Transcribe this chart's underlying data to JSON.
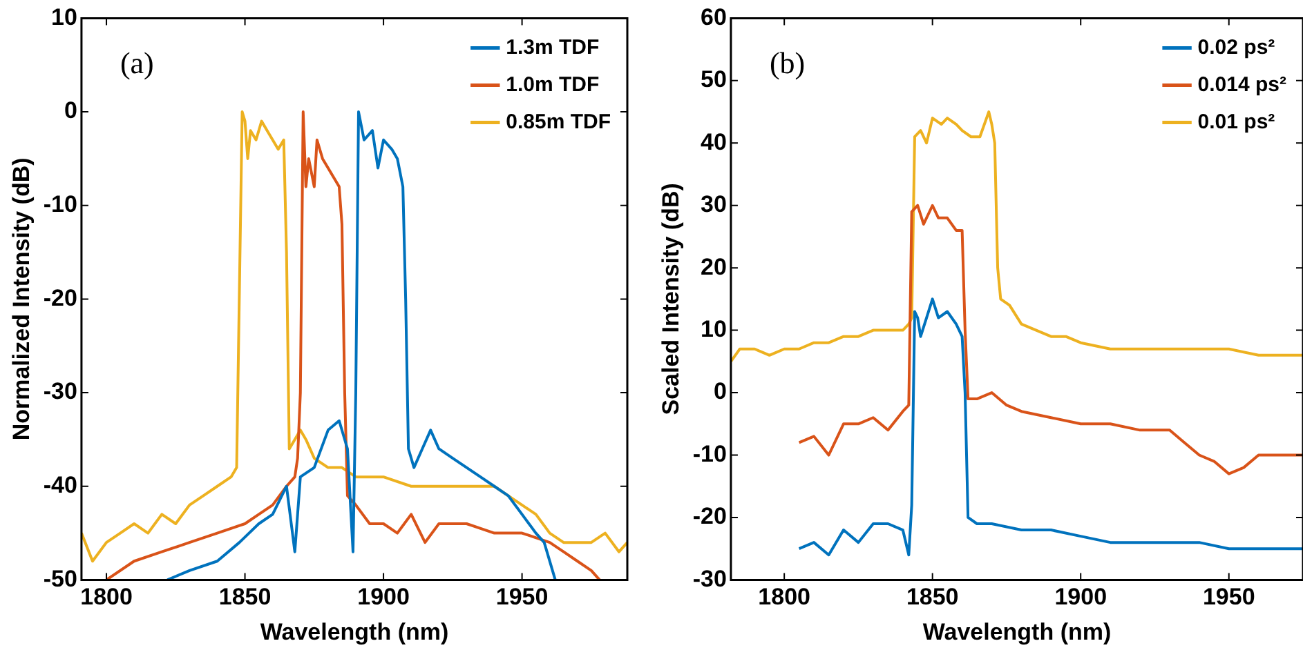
{
  "chart_data": [
    {
      "type": "line",
      "xlabel": "Wavelength (nm)",
      "ylabel": "Normalized Intensity (dB)",
      "annotations": [
        "(a)"
      ],
      "xlim": [
        1791,
        1988
      ],
      "xticks": [
        1800,
        1850,
        1900,
        1950
      ],
      "ylim": [
        -50,
        10
      ],
      "yticks": [
        -50,
        -40,
        -30,
        -20,
        -10,
        0,
        10
      ],
      "legend": "top right",
      "marker": "none",
      "line_style": "solid",
      "grid": false,
      "series": [
        {
          "name": "1.3m TDF",
          "color": "#0072bd",
          "x": [
            1822,
            1830,
            1840,
            1848,
            1855,
            1860,
            1865,
            1868,
            1870,
            1875,
            1880,
            1884,
            1887,
            1889,
            1890,
            1891,
            1893,
            1896,
            1898,
            1900,
            1903,
            1905,
            1907,
            1908,
            1909,
            1911,
            1914,
            1917,
            1920,
            1925,
            1930,
            1935,
            1940,
            1945,
            1950,
            1955,
            1958,
            1962
          ],
          "values": [
            -50,
            -49,
            -48,
            -46,
            -44,
            -43,
            -40,
            -47,
            -39,
            -38,
            -34,
            -33,
            -36,
            -47,
            -30,
            0,
            -3,
            -2,
            -6,
            -3,
            -4,
            -5,
            -8,
            -20,
            -36,
            -38,
            -36,
            -34,
            -36,
            -37,
            -38,
            -39,
            -40,
            -41,
            -43,
            -45,
            -46,
            -50
          ]
        },
        {
          "name": "1.0m TDF",
          "color": "#d95319",
          "x": [
            1800,
            1810,
            1820,
            1830,
            1840,
            1850,
            1855,
            1860,
            1865,
            1868,
            1869,
            1870,
            1871,
            1872,
            1873,
            1875,
            1876,
            1878,
            1880,
            1882,
            1884,
            1885,
            1886,
            1887,
            1890,
            1895,
            1900,
            1905,
            1910,
            1915,
            1920,
            1930,
            1940,
            1950,
            1960,
            1965,
            1970,
            1975,
            1978
          ],
          "values": [
            -50,
            -48,
            -47,
            -46,
            -45,
            -44,
            -43,
            -42,
            -40,
            -39,
            -37,
            -30,
            0,
            -8,
            -5,
            -8,
            -3,
            -5,
            -6,
            -7,
            -8,
            -12,
            -30,
            -41,
            -42,
            -44,
            -44,
            -45,
            -43,
            -46,
            -44,
            -44,
            -45,
            -45,
            -46,
            -47,
            -48,
            -49,
            -50
          ]
        },
        {
          "name": "0.85m TDF",
          "color": "#edb120",
          "x": [
            1791,
            1795,
            1800,
            1805,
            1810,
            1815,
            1820,
            1825,
            1830,
            1835,
            1840,
            1845,
            1847,
            1849,
            1850,
            1851,
            1852,
            1854,
            1856,
            1858,
            1860,
            1862,
            1864,
            1865,
            1866,
            1868,
            1870,
            1872,
            1875,
            1880,
            1885,
            1890,
            1900,
            1910,
            1920,
            1930,
            1940,
            1945,
            1950,
            1955,
            1960,
            1965,
            1970,
            1975,
            1980,
            1985,
            1988
          ],
          "values": [
            -45,
            -48,
            -46,
            -45,
            -44,
            -45,
            -43,
            -44,
            -42,
            -41,
            -40,
            -39,
            -38,
            0,
            -1,
            -5,
            -2,
            -3,
            -1,
            -2,
            -3,
            -4,
            -3,
            -15,
            -36,
            -35,
            -34,
            -35,
            -37,
            -38,
            -38,
            -39,
            -39,
            -40,
            -40,
            -40,
            -40,
            -41,
            -42,
            -43,
            -45,
            -46,
            -46,
            -46,
            -45,
            -47,
            -46
          ]
        }
      ]
    },
    {
      "type": "line",
      "xlabel": "Wavelength (nm)",
      "ylabel": "Scaled Intensity (dB)",
      "annotations": [
        "(b)"
      ],
      "xlim": [
        1782,
        1975
      ],
      "xticks": [
        1800,
        1850,
        1900,
        1950
      ],
      "ylim": [
        -30,
        60
      ],
      "yticks": [
        -30,
        -20,
        -10,
        0,
        10,
        20,
        30,
        40,
        50,
        60
      ],
      "legend": "top right",
      "marker": "none",
      "line_style": "solid",
      "grid": false,
      "series": [
        {
          "name": "0.02 ps²",
          "color": "#0072bd",
          "x": [
            1805,
            1810,
            1815,
            1820,
            1825,
            1830,
            1835,
            1840,
            1842,
            1843,
            1844,
            1845,
            1846,
            1848,
            1850,
            1852,
            1855,
            1858,
            1860,
            1861,
            1862,
            1865,
            1870,
            1880,
            1890,
            1900,
            1910,
            1920,
            1930,
            1940,
            1950,
            1960,
            1975
          ],
          "values": [
            -25,
            -24,
            -26,
            -22,
            -24,
            -21,
            -21,
            -22,
            -26,
            -18,
            13,
            12,
            9,
            12,
            15,
            12,
            13,
            11,
            9,
            0,
            -20,
            -21,
            -21,
            -22,
            -22,
            -23,
            -24,
            -24,
            -24,
            -24,
            -25,
            -25,
            -25
          ]
        },
        {
          "name": "0.014 ps²",
          "color": "#d95319",
          "x": [
            1805,
            1810,
            1815,
            1820,
            1825,
            1830,
            1835,
            1840,
            1842,
            1843,
            1845,
            1847,
            1850,
            1852,
            1855,
            1858,
            1860,
            1861,
            1862,
            1865,
            1870,
            1875,
            1880,
            1890,
            1900,
            1910,
            1920,
            1930,
            1935,
            1940,
            1945,
            1950,
            1955,
            1960,
            1965,
            1970,
            1975
          ],
          "values": [
            -8,
            -7,
            -10,
            -5,
            -5,
            -4,
            -6,
            -3,
            -2,
            29,
            30,
            27,
            30,
            28,
            28,
            26,
            26,
            10,
            -1,
            -1,
            0,
            -2,
            -3,
            -4,
            -5,
            -5,
            -6,
            -6,
            -8,
            -10,
            -11,
            -13,
            -12,
            -10,
            -10,
            -10,
            -10
          ]
        },
        {
          "name": "0.01 ps²",
          "color": "#edb120",
          "x": [
            1782,
            1785,
            1790,
            1795,
            1800,
            1805,
            1810,
            1815,
            1820,
            1825,
            1830,
            1835,
            1840,
            1842,
            1843,
            1844,
            1846,
            1848,
            1850,
            1853,
            1855,
            1858,
            1860,
            1863,
            1866,
            1869,
            1870,
            1871,
            1872,
            1873,
            1876,
            1880,
            1885,
            1890,
            1895,
            1900,
            1910,
            1920,
            1930,
            1940,
            1950,
            1960,
            1970,
            1975
          ],
          "values": [
            5,
            7,
            7,
            6,
            7,
            7,
            8,
            8,
            9,
            9,
            10,
            10,
            10,
            11,
            12,
            41,
            42,
            40,
            44,
            43,
            44,
            43,
            42,
            41,
            41,
            45,
            43,
            40,
            20,
            15,
            14,
            11,
            10,
            9,
            9,
            8,
            7,
            7,
            7,
            7,
            7,
            6,
            6,
            6
          ]
        }
      ]
    }
  ]
}
